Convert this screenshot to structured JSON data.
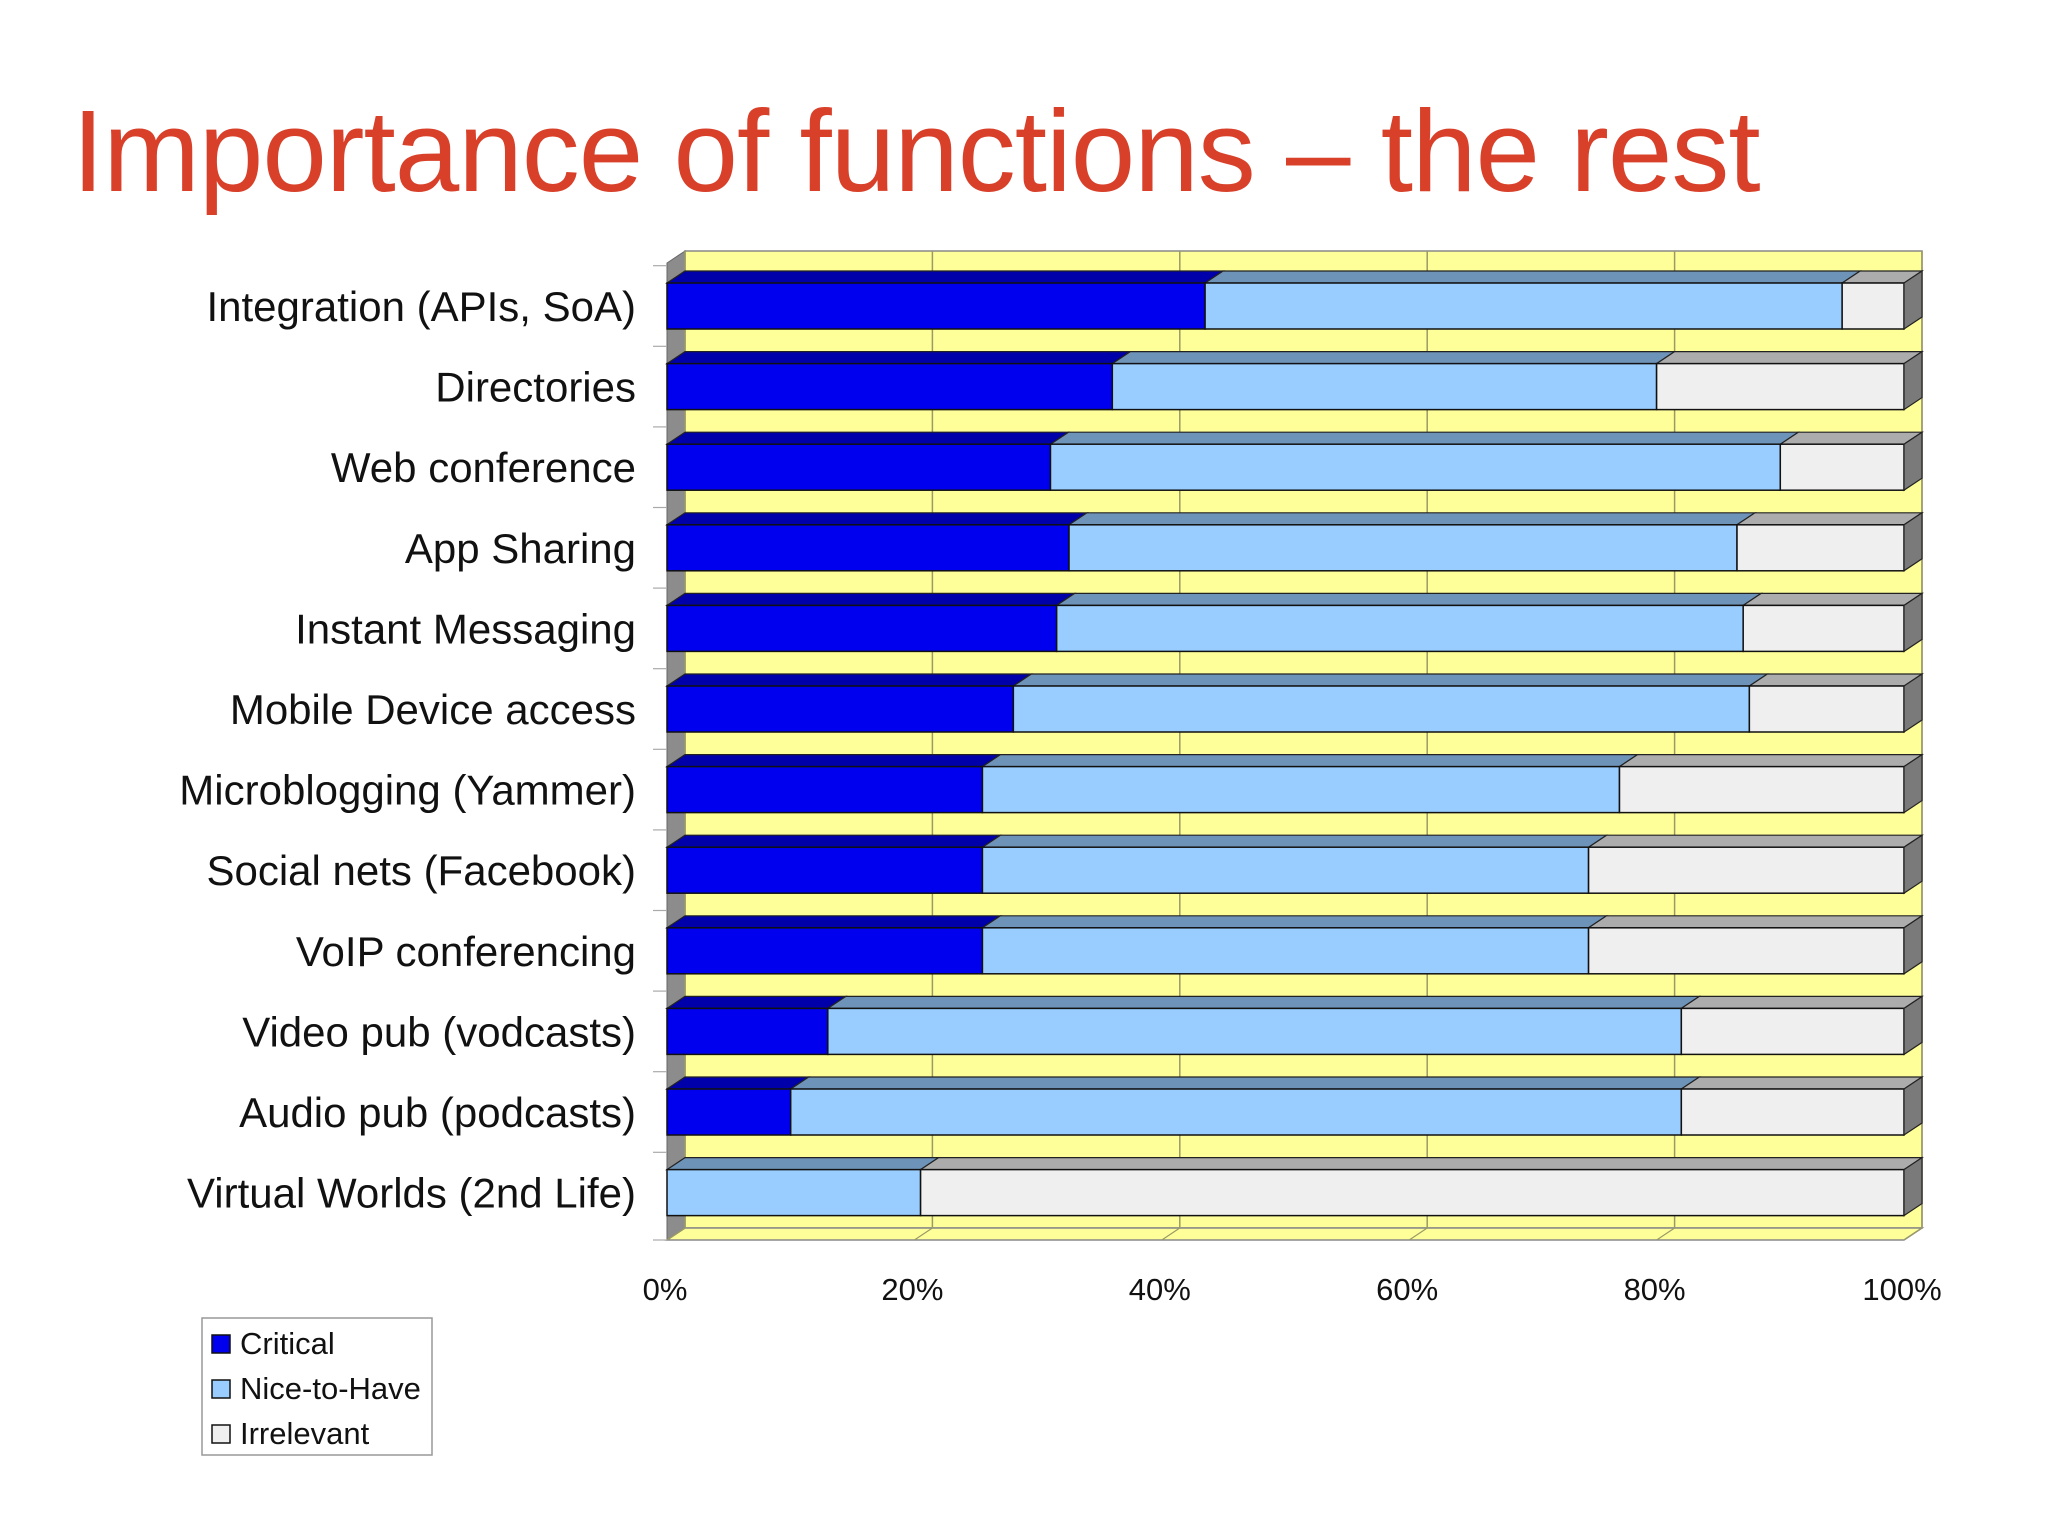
{
  "slide": {
    "title": "Importance of functions – the rest"
  },
  "colors": {
    "title": "#d9402a",
    "plot_background": "#ffff99",
    "critical": "#0000ee",
    "nice_to_have": "#99ccff",
    "irrelevant": "#efefef"
  },
  "chart_data": {
    "type": "bar",
    "orientation": "horizontal",
    "stacked": "100%",
    "style": "3d",
    "title": "",
    "xlabel": "",
    "ylabel": "",
    "xlim": [
      0,
      100
    ],
    "x_ticks": [
      "0%",
      "20%",
      "40%",
      "60%",
      "80%",
      "100%"
    ],
    "grid": true,
    "legend_position": "bottom-left",
    "categories": [
      "Integration (APIs, SoA)",
      "Directories",
      "Web conference",
      "App Sharing",
      "Instant Messaging",
      "Mobile Device access",
      "Microblogging (Yammer)",
      "Social nets (Facebook)",
      "VoIP conferencing",
      "Video pub (vodcasts)",
      "Audio pub (podcasts)",
      "Virtual Worlds (2nd Life)"
    ],
    "series": [
      {
        "name": "Critical",
        "color": "#0000ee",
        "values": [
          43.5,
          36,
          31,
          32.5,
          31.5,
          28,
          25.5,
          25.5,
          25.5,
          13,
          10,
          0
        ]
      },
      {
        "name": "Nice-to-Have",
        "color": "#99ccff",
        "values": [
          51.5,
          44,
          59,
          54,
          55.5,
          59.5,
          51.5,
          49,
          49,
          69,
          72,
          20.5
        ]
      },
      {
        "name": "Irrelevant",
        "color": "#efefef",
        "values": [
          5,
          20,
          10,
          13.5,
          13,
          12.5,
          23,
          25.5,
          25.5,
          18,
          18,
          79.5
        ]
      }
    ]
  }
}
